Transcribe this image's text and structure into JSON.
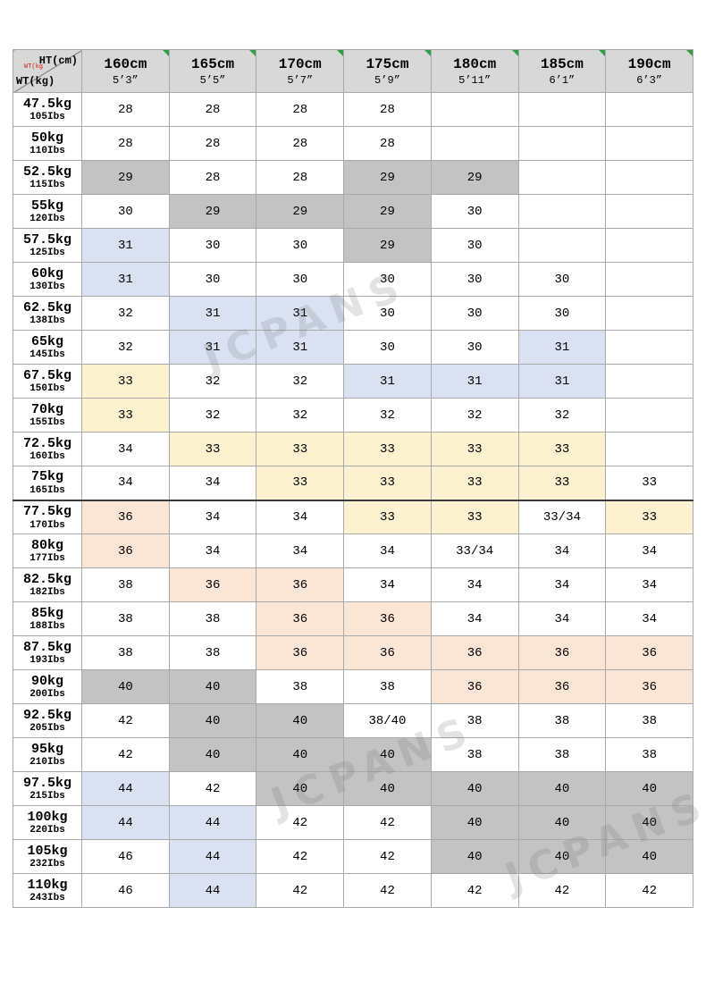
{
  "colors": {
    "white": "#ffffff",
    "gray": "#c3c3c3",
    "blue": "#d9e1f2",
    "yellow": "#fcf2cf",
    "pink": "#fbe5d5",
    "header": "#d8d8d8",
    "flag_green": "#2f9e49",
    "red_note": "#cc2200"
  },
  "watermark": {
    "text": "JCPANS"
  },
  "table": {
    "corner": {
      "ht": "HT(cm)",
      "wt": "WT(kg)",
      "small": "WT(kg"
    },
    "columns": [
      {
        "cm": "160cm",
        "ft": "5’3”"
      },
      {
        "cm": "165cm",
        "ft": "5’5”"
      },
      {
        "cm": "170cm",
        "ft": "5’7”"
      },
      {
        "cm": "175cm",
        "ft": "5’9”"
      },
      {
        "cm": "180cm",
        "ft": "5’11”"
      },
      {
        "cm": "185cm",
        "ft": "6’1”"
      },
      {
        "cm": "190cm",
        "ft": "6’3”"
      }
    ],
    "rows": [
      {
        "kg": "47.5kg",
        "lbs": "105Ibs",
        "cells": [
          [
            "28",
            "white"
          ],
          [
            "28",
            "white"
          ],
          [
            "28",
            "white"
          ],
          [
            "28",
            "white"
          ],
          [
            "",
            "white"
          ],
          [
            "",
            "white"
          ],
          [
            "",
            "white"
          ]
        ]
      },
      {
        "kg": "50kg",
        "lbs": "110Ibs",
        "cells": [
          [
            "28",
            "white"
          ],
          [
            "28",
            "white"
          ],
          [
            "28",
            "white"
          ],
          [
            "28",
            "white"
          ],
          [
            "",
            "white"
          ],
          [
            "",
            "white"
          ],
          [
            "",
            "white"
          ]
        ]
      },
      {
        "kg": "52.5kg",
        "lbs": "115Ibs",
        "cells": [
          [
            "29",
            "gray"
          ],
          [
            "28",
            "white"
          ],
          [
            "28",
            "white"
          ],
          [
            "29",
            "gray"
          ],
          [
            "29",
            "gray"
          ],
          [
            "",
            "white"
          ],
          [
            "",
            "white"
          ]
        ]
      },
      {
        "kg": "55kg",
        "lbs": "120Ibs",
        "cells": [
          [
            "30",
            "white"
          ],
          [
            "29",
            "gray"
          ],
          [
            "29",
            "gray"
          ],
          [
            "29",
            "gray"
          ],
          [
            "30",
            "white"
          ],
          [
            "",
            "white"
          ],
          [
            "",
            "white"
          ]
        ]
      },
      {
        "kg": "57.5kg",
        "lbs": "125Ibs",
        "cells": [
          [
            "31",
            "blue"
          ],
          [
            "30",
            "white"
          ],
          [
            "30",
            "white"
          ],
          [
            "29",
            "gray"
          ],
          [
            "30",
            "white"
          ],
          [
            "",
            "white"
          ],
          [
            "",
            "white"
          ]
        ]
      },
      {
        "kg": "60kg",
        "lbs": "130Ibs",
        "cells": [
          [
            "31",
            "blue"
          ],
          [
            "30",
            "white"
          ],
          [
            "30",
            "white"
          ],
          [
            "30",
            "white"
          ],
          [
            "30",
            "white"
          ],
          [
            "30",
            "white"
          ],
          [
            "",
            "white"
          ]
        ]
      },
      {
        "kg": "62.5kg",
        "lbs": "138Ibs",
        "cells": [
          [
            "32",
            "white"
          ],
          [
            "31",
            "blue"
          ],
          [
            "31",
            "blue"
          ],
          [
            "30",
            "white"
          ],
          [
            "30",
            "white"
          ],
          [
            "30",
            "white"
          ],
          [
            "",
            "white"
          ]
        ]
      },
      {
        "kg": "65kg",
        "lbs": "145Ibs",
        "cells": [
          [
            "32",
            "white"
          ],
          [
            "31",
            "blue"
          ],
          [
            "31",
            "blue"
          ],
          [
            "30",
            "white"
          ],
          [
            "30",
            "white"
          ],
          [
            "31",
            "blue"
          ],
          [
            "",
            "white"
          ]
        ]
      },
      {
        "kg": "67.5kg",
        "lbs": "150Ibs",
        "cells": [
          [
            "33",
            "yellow"
          ],
          [
            "32",
            "white"
          ],
          [
            "32",
            "white"
          ],
          [
            "31",
            "blue"
          ],
          [
            "31",
            "blue"
          ],
          [
            "31",
            "blue"
          ],
          [
            "",
            "white"
          ]
        ]
      },
      {
        "kg": "70kg",
        "lbs": "155Ibs",
        "cells": [
          [
            "33",
            "yellow"
          ],
          [
            "32",
            "white"
          ],
          [
            "32",
            "white"
          ],
          [
            "32",
            "white"
          ],
          [
            "32",
            "white"
          ],
          [
            "32",
            "white"
          ],
          [
            "",
            "white"
          ]
        ]
      },
      {
        "kg": "72.5kg",
        "lbs": "160Ibs",
        "cells": [
          [
            "34",
            "white"
          ],
          [
            "33",
            "yellow"
          ],
          [
            "33",
            "yellow"
          ],
          [
            "33",
            "yellow"
          ],
          [
            "33",
            "yellow"
          ],
          [
            "33",
            "yellow"
          ],
          [
            "",
            "white"
          ]
        ]
      },
      {
        "kg": "75kg",
        "lbs": "165Ibs",
        "cells": [
          [
            "34",
            "white"
          ],
          [
            "34",
            "white"
          ],
          [
            "33",
            "yellow"
          ],
          [
            "33",
            "yellow"
          ],
          [
            "33",
            "yellow"
          ],
          [
            "33",
            "yellow"
          ],
          [
            "33",
            "white"
          ]
        ]
      },
      {
        "kg": "77.5kg",
        "lbs": "170Ibs",
        "cells": [
          [
            "36",
            "pink"
          ],
          [
            "34",
            "white"
          ],
          [
            "34",
            "white"
          ],
          [
            "33",
            "yellow"
          ],
          [
            "33",
            "yellow"
          ],
          [
            "33/34",
            "white"
          ],
          [
            "33",
            "yellow"
          ]
        ]
      },
      {
        "kg": "80kg",
        "lbs": "177Ibs",
        "cells": [
          [
            "36",
            "pink"
          ],
          [
            "34",
            "white"
          ],
          [
            "34",
            "white"
          ],
          [
            "34",
            "white"
          ],
          [
            "33/34",
            "white"
          ],
          [
            "34",
            "white"
          ],
          [
            "34",
            "white"
          ]
        ]
      },
      {
        "kg": "82.5kg",
        "lbs": "182Ibs",
        "cells": [
          [
            "38",
            "white"
          ],
          [
            "36",
            "pink"
          ],
          [
            "36",
            "pink"
          ],
          [
            "34",
            "white"
          ],
          [
            "34",
            "white"
          ],
          [
            "34",
            "white"
          ],
          [
            "34",
            "white"
          ]
        ]
      },
      {
        "kg": "85kg",
        "lbs": "188Ibs",
        "cells": [
          [
            "38",
            "white"
          ],
          [
            "38",
            "white"
          ],
          [
            "36",
            "pink"
          ],
          [
            "36",
            "pink"
          ],
          [
            "34",
            "white"
          ],
          [
            "34",
            "white"
          ],
          [
            "34",
            "white"
          ]
        ]
      },
      {
        "kg": "87.5kg",
        "lbs": "193Ibs",
        "cells": [
          [
            "38",
            "white"
          ],
          [
            "38",
            "white"
          ],
          [
            "36",
            "pink"
          ],
          [
            "36",
            "pink"
          ],
          [
            "36",
            "pink"
          ],
          [
            "36",
            "pink"
          ],
          [
            "36",
            "pink"
          ]
        ]
      },
      {
        "kg": "90kg",
        "lbs": "200Ibs",
        "cells": [
          [
            "40",
            "gray"
          ],
          [
            "40",
            "gray"
          ],
          [
            "38",
            "white"
          ],
          [
            "38",
            "white"
          ],
          [
            "36",
            "pink"
          ],
          [
            "36",
            "pink"
          ],
          [
            "36",
            "pink"
          ]
        ]
      },
      {
        "kg": "92.5kg",
        "lbs": "205Ibs",
        "cells": [
          [
            "42",
            "white"
          ],
          [
            "40",
            "gray"
          ],
          [
            "40",
            "gray"
          ],
          [
            "38/40",
            "white"
          ],
          [
            "38",
            "white"
          ],
          [
            "38",
            "white"
          ],
          [
            "38",
            "white"
          ]
        ]
      },
      {
        "kg": "95kg",
        "lbs": "210Ibs",
        "cells": [
          [
            "42",
            "white"
          ],
          [
            "40",
            "gray"
          ],
          [
            "40",
            "gray"
          ],
          [
            "40",
            "gray"
          ],
          [
            "38",
            "white"
          ],
          [
            "38",
            "white"
          ],
          [
            "38",
            "white"
          ]
        ]
      },
      {
        "kg": "97.5kg",
        "lbs": "215Ibs",
        "cells": [
          [
            "44",
            "blue"
          ],
          [
            "42",
            "white"
          ],
          [
            "40",
            "gray"
          ],
          [
            "40",
            "gray"
          ],
          [
            "40",
            "gray"
          ],
          [
            "40",
            "gray"
          ],
          [
            "40",
            "gray"
          ]
        ]
      },
      {
        "kg": "100kg",
        "lbs": "220Ibs",
        "cells": [
          [
            "44",
            "blue"
          ],
          [
            "44",
            "blue"
          ],
          [
            "42",
            "white"
          ],
          [
            "42",
            "white"
          ],
          [
            "40",
            "gray"
          ],
          [
            "40",
            "gray"
          ],
          [
            "40",
            "gray"
          ]
        ]
      },
      {
        "kg": "105kg",
        "lbs": "232Ibs",
        "cells": [
          [
            "46",
            "white"
          ],
          [
            "44",
            "blue"
          ],
          [
            "42",
            "white"
          ],
          [
            "42",
            "white"
          ],
          [
            "40",
            "gray"
          ],
          [
            "40",
            "gray"
          ],
          [
            "40",
            "gray"
          ]
        ]
      },
      {
        "kg": "110kg",
        "lbs": "243Ibs",
        "cells": [
          [
            "46",
            "white"
          ],
          [
            "44",
            "blue"
          ],
          [
            "42",
            "white"
          ],
          [
            "42",
            "white"
          ],
          [
            "42",
            "white"
          ],
          [
            "42",
            "white"
          ],
          [
            "42",
            "white"
          ]
        ]
      }
    ]
  }
}
